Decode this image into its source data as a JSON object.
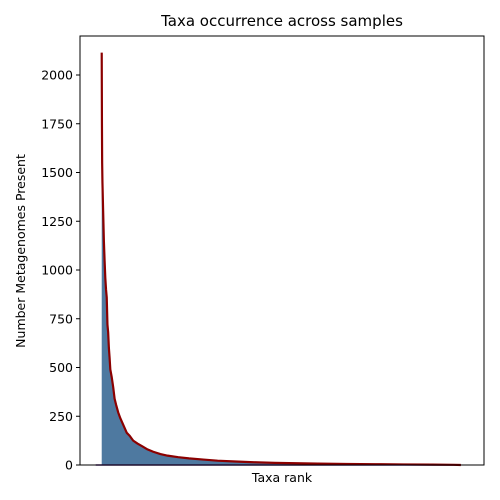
{
  "chart_data": {
    "type": "area",
    "title": "Taxa occurrence across samples",
    "xlabel": "Taxa rank",
    "ylabel": "Number Metagenomes Present",
    "ylim": [
      0,
      2200
    ],
    "yticks": [
      0,
      250,
      500,
      750,
      1000,
      1250,
      1500,
      1750,
      2000
    ],
    "xlim": [
      0,
      520
    ],
    "x_tick_labels": false,
    "grid": false,
    "colors": {
      "fill": "#4e79a0",
      "line": "#8b0000",
      "baseline": "#5a2a8a"
    },
    "points": [
      [
        8,
        2115
      ],
      [
        8.3,
        1750
      ],
      [
        8.6,
        1550
      ],
      [
        9,
        1450
      ],
      [
        10,
        1300
      ],
      [
        11,
        1150
      ],
      [
        12,
        1050
      ],
      [
        13,
        960
      ],
      [
        14,
        900
      ],
      [
        15,
        860
      ],
      [
        16,
        720
      ],
      [
        17,
        680
      ],
      [
        18,
        600
      ],
      [
        19,
        550
      ],
      [
        20,
        490
      ],
      [
        22,
        450
      ],
      [
        24,
        400
      ],
      [
        26,
        340
      ],
      [
        28,
        310
      ],
      [
        31,
        270
      ],
      [
        34,
        240
      ],
      [
        37,
        215
      ],
      [
        40,
        190
      ],
      [
        43,
        165
      ],
      [
        47,
        150
      ],
      [
        52,
        125
      ],
      [
        58,
        110
      ],
      [
        65,
        95
      ],
      [
        72,
        80
      ],
      [
        80,
        68
      ],
      [
        90,
        56
      ],
      [
        100,
        48
      ],
      [
        115,
        40
      ],
      [
        130,
        34
      ],
      [
        150,
        28
      ],
      [
        170,
        22
      ],
      [
        195,
        18
      ],
      [
        220,
        14
      ],
      [
        250,
        11
      ],
      [
        280,
        9
      ],
      [
        310,
        7
      ],
      [
        350,
        5
      ],
      [
        390,
        4
      ],
      [
        430,
        3
      ],
      [
        470,
        2
      ],
      [
        500,
        1
      ],
      [
        510,
        0
      ]
    ]
  }
}
